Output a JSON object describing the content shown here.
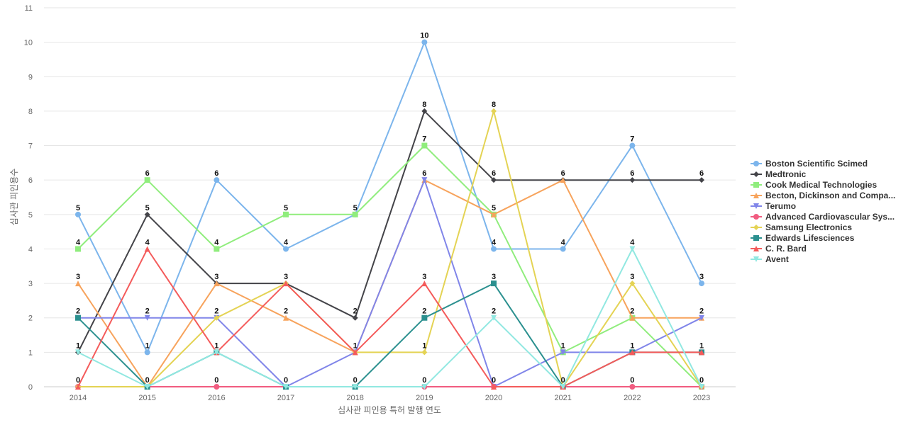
{
  "chart_data": {
    "type": "line",
    "xlabel": "심사관 피인용 특허 발행 연도",
    "ylabel": "심사관 피인용수",
    "categories": [
      "2014",
      "2015",
      "2016",
      "2017",
      "2018",
      "2019",
      "2020",
      "2021",
      "2022",
      "2023"
    ],
    "ylim": [
      0,
      11
    ],
    "yticks": [
      0,
      1,
      2,
      3,
      4,
      5,
      6,
      7,
      8,
      9,
      10,
      11
    ],
    "grid": true,
    "legend_position": "right",
    "series": [
      {
        "name": "Boston Scientific Scimed",
        "color": "#7cb5ec",
        "marker": "circle",
        "values": [
          5,
          1,
          6,
          4,
          5,
          10,
          4,
          4,
          7,
          3
        ]
      },
      {
        "name": "Medtronic",
        "color": "#434348",
        "marker": "diamond",
        "values": [
          1,
          5,
          3,
          3,
          2,
          8,
          6,
          6,
          6,
          6
        ]
      },
      {
        "name": "Cook Medical Technologies",
        "color": "#90ed7d",
        "marker": "square",
        "values": [
          4,
          6,
          4,
          5,
          5,
          7,
          5,
          1,
          2,
          0
        ]
      },
      {
        "name": "Becton, Dickinson and Compa...",
        "color": "#f7a35c",
        "marker": "triangle",
        "values": [
          3,
          0,
          3,
          2,
          1,
          6,
          5,
          6,
          2,
          2
        ]
      },
      {
        "name": "Terumo",
        "color": "#8085e9",
        "marker": "triangle-down",
        "values": [
          2,
          2,
          2,
          0,
          1,
          6,
          0,
          1,
          1,
          2
        ]
      },
      {
        "name": "Advanced Cardiovascular Sys...",
        "color": "#f15c80",
        "marker": "circle",
        "values": [
          0,
          0,
          0,
          0,
          0,
          0,
          0,
          0,
          0,
          0
        ]
      },
      {
        "name": "Samsung Electronics",
        "color": "#e4d354",
        "marker": "diamond",
        "values": [
          0,
          0,
          2,
          3,
          1,
          1,
          8,
          0,
          3,
          0
        ]
      },
      {
        "name": "Edwards Lifesciences",
        "color": "#2b908f",
        "marker": "square",
        "values": [
          2,
          0,
          1,
          0,
          0,
          2,
          3,
          0,
          1,
          1
        ]
      },
      {
        "name": "C. R. Bard",
        "color": "#f45b5b",
        "marker": "triangle",
        "values": [
          0,
          4,
          1,
          3,
          1,
          3,
          0,
          0,
          1,
          1
        ]
      },
      {
        "name": "Avent",
        "color": "#91e8e1",
        "marker": "triangle-down",
        "values": [
          1,
          0,
          1,
          0,
          0,
          0,
          2,
          0,
          4,
          0
        ]
      }
    ],
    "data_labels": [
      {
        "x": "2014",
        "labels": [
          "5",
          "4",
          "3",
          "2",
          "1",
          "0"
        ]
      },
      {
        "x": "2015",
        "labels": [
          "6",
          "5",
          "4",
          "2",
          "1",
          "0"
        ]
      },
      {
        "x": "2016",
        "labels": [
          "6",
          "4",
          "3",
          "2",
          "1",
          "0"
        ]
      },
      {
        "x": "2017",
        "labels": [
          "5",
          "4",
          "3",
          "2",
          "0"
        ]
      },
      {
        "x": "2018",
        "labels": [
          "5",
          "2",
          "1",
          "0"
        ]
      },
      {
        "x": "2019",
        "labels": [
          "10",
          "8",
          "7",
          "6",
          "3",
          "2",
          "1",
          "0"
        ]
      },
      {
        "x": "2020",
        "labels": [
          "8",
          "6",
          "5",
          "4",
          "3",
          "2",
          "0"
        ]
      },
      {
        "x": "2021",
        "labels": [
          "6",
          "4",
          "1",
          "0"
        ]
      },
      {
        "x": "2022",
        "labels": [
          "7",
          "6",
          "4",
          "3",
          "2",
          "1",
          "0"
        ]
      },
      {
        "x": "2023",
        "labels": [
          "6",
          "3",
          "2",
          "1",
          "0"
        ]
      }
    ]
  }
}
